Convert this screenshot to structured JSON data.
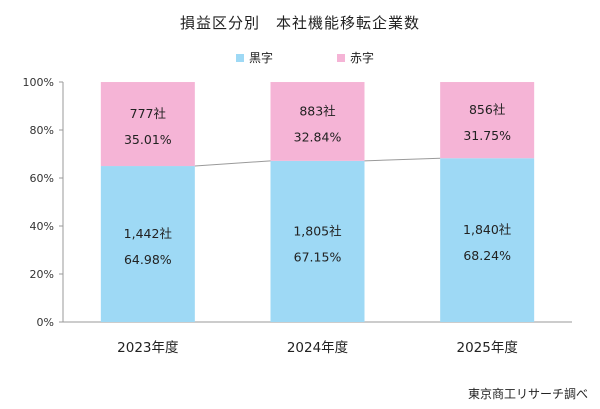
{
  "chart_data": {
    "type": "bar",
    "stacked": true,
    "percent_stacked": true,
    "title": "損益区分別　本社機能移転企業数",
    "categories": [
      "2023年度",
      "2024年度",
      "2025年度"
    ],
    "series": [
      {
        "name": "黒字",
        "color": "#9ed9f5",
        "values": [
          64.98,
          67.15,
          68.24
        ],
        "count_labels": [
          "1,442社",
          "1,805社",
          "1,840社"
        ],
        "pct_labels": [
          "64.98%",
          "67.15%",
          "68.24%"
        ]
      },
      {
        "name": "赤字",
        "color": "#f5b4d6",
        "values": [
          35.01,
          32.84,
          31.75
        ],
        "count_labels": [
          "777社",
          "883社",
          "856社"
        ],
        "pct_labels": [
          "35.01%",
          "32.84%",
          "31.75%"
        ]
      }
    ],
    "ylim": [
      0,
      100
    ],
    "yticks": [
      "0%",
      "20%",
      "40%",
      "60%",
      "80%",
      "100%"
    ],
    "legend_position": "top-center",
    "grid": false,
    "series_lines": true
  },
  "source": "東京商工リサーチ調べ"
}
